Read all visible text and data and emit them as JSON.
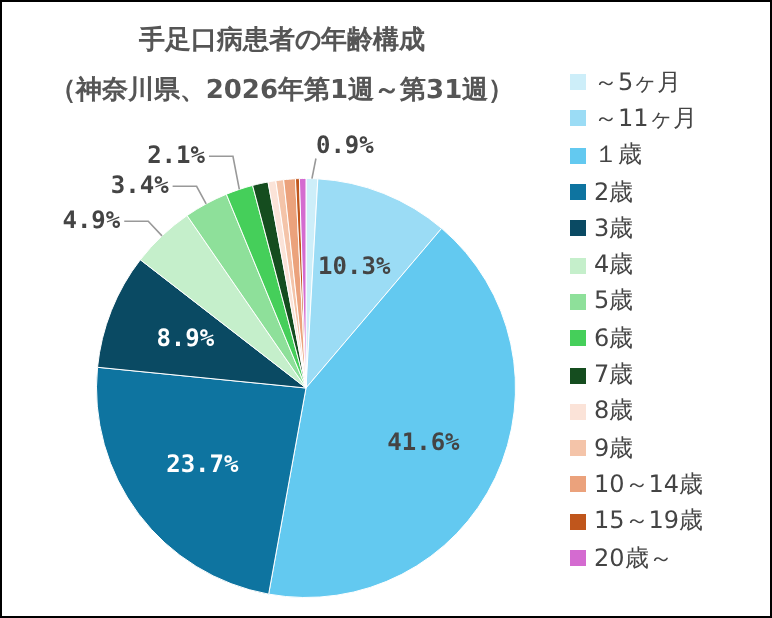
{
  "chart_data": {
    "type": "pie",
    "title": "手足口病患者の年齢構成",
    "subtitle": "（神奈川県、2026年第1週～第31週）",
    "categories": [
      "～5ヶ月",
      "～11ヶ月",
      "１歳",
      "2歳",
      "3歳",
      "4歳",
      "5歳",
      "6歳",
      "7歳",
      "8歳",
      "9歳",
      "10～14歳",
      "15～19歳",
      "20歳～"
    ],
    "values": [
      0.9,
      10.3,
      41.6,
      23.7,
      8.9,
      4.9,
      3.4,
      2.1,
      1.2,
      0.6,
      0.6,
      0.9,
      0.3,
      0.5
    ],
    "value_labels": [
      "0.9%",
      "10.3%",
      "41.6%",
      "23.7%",
      "8.9%",
      "4.9%",
      "3.4%",
      "2.1%",
      null,
      null,
      null,
      null,
      null,
      null
    ],
    "colors": [
      "#cdeef9",
      "#9bdcf5",
      "#63c9f0",
      "#0e74a0",
      "#0a4a63",
      "#c5efcb",
      "#8ee09a",
      "#45cf5a",
      "#154d1f",
      "#fbe3d8",
      "#f4c4a9",
      "#eba27c",
      "#c0561c",
      "#d46bd0"
    ],
    "legend": "right"
  }
}
